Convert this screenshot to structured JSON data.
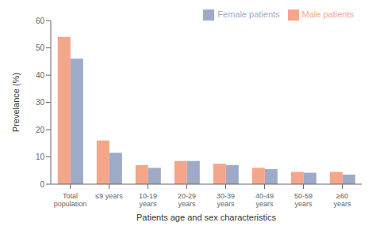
{
  "chart_data": {
    "type": "bar",
    "categories": [
      "Total\npopulation",
      "≤9 years",
      "10-19\nyears",
      "20-29\nyears",
      "30-39\nyears",
      "40-49\nyears",
      "50-59\nyears",
      "≥60\nyears"
    ],
    "series": [
      {
        "name": "Male patients",
        "color": "#F4A58A",
        "values": [
          54.0,
          16.0,
          7.0,
          8.5,
          7.5,
          6.0,
          4.5,
          4.5
        ]
      },
      {
        "name": "Female patients",
        "color": "#9DAAC8",
        "values": [
          46.0,
          11.5,
          6.0,
          8.5,
          7.0,
          5.5,
          4.2,
          3.5
        ]
      }
    ],
    "xlabel": "Patients age and sex characteristics",
    "ylabel": "Prevelance (%)",
    "ylim": [
      0,
      60
    ],
    "yticks": [
      0,
      10,
      20,
      30,
      40,
      50,
      60
    ],
    "grid": false,
    "legend": "upper right"
  }
}
